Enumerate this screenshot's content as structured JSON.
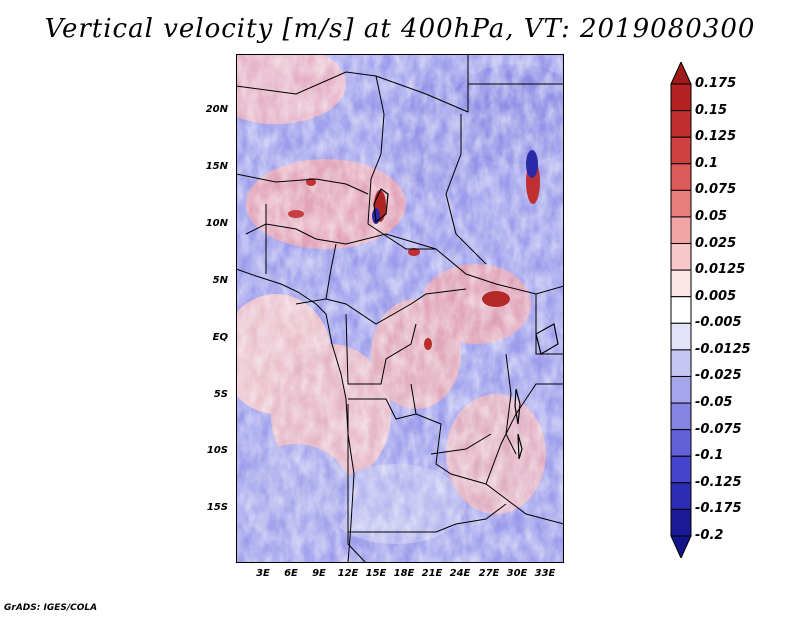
{
  "title": "Vertical velocity [m/s] at 400hPa, VT: 2019080300",
  "credit": "GrADS: IGES/COLA",
  "map": {
    "lat_labels": [
      "20N",
      "15N",
      "10N",
      "5N",
      "EQ",
      "5S",
      "10S",
      "15S"
    ],
    "lon_labels": [
      "3E",
      "6E",
      "9E",
      "12E",
      "15E",
      "18E",
      "21E",
      "24E",
      "27E",
      "30E",
      "33E"
    ]
  },
  "colorbar": {
    "labels": [
      "0.175",
      "0.15",
      "0.125",
      "0.1",
      "0.075",
      "0.05",
      "0.025",
      "0.0125",
      "0.005",
      "-0.005",
      "-0.0125",
      "-0.025",
      "-0.05",
      "-0.075",
      "-0.1",
      "-0.125",
      "-0.175",
      "-0.2"
    ],
    "colors": [
      "#a11a1a",
      "#b42222",
      "#c22e2e",
      "#d04040",
      "#dc5c5c",
      "#e67e7e",
      "#f0a4a4",
      "#f8c8c8",
      "#fde6e6",
      "#ffffff",
      "#e2e2fb",
      "#c6c6f3",
      "#a6a6ec",
      "#8484e2",
      "#6262d8",
      "#4444cc",
      "#2c2cb4",
      "#1a1a96",
      "#14148a"
    ]
  }
}
